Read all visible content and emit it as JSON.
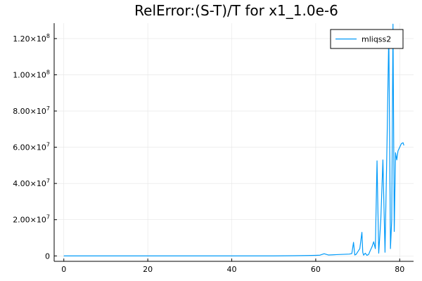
{
  "chart_data": {
    "type": "line",
    "title": "RelError:(S-T)/T for x1_1.0e-6",
    "xlabel": "",
    "ylabel": "",
    "xlim": [
      -2.3,
      83.3
    ],
    "ylim": [
      -3000000,
      128500000
    ],
    "grid": true,
    "legend_position": "top-right",
    "x_ticks": [
      {
        "value": 0,
        "label": "0"
      },
      {
        "value": 20,
        "label": "20"
      },
      {
        "value": 40,
        "label": "40"
      },
      {
        "value": 60,
        "label": "60"
      },
      {
        "value": 80,
        "label": "80"
      }
    ],
    "y_ticks": [
      {
        "value": 0,
        "mantissa": "0",
        "exponent": ""
      },
      {
        "value": 20000000,
        "mantissa": "2.00×10",
        "exponent": "7"
      },
      {
        "value": 40000000,
        "mantissa": "4.00×10",
        "exponent": "7"
      },
      {
        "value": 60000000,
        "mantissa": "6.00×10",
        "exponent": "7"
      },
      {
        "value": 80000000,
        "mantissa": "8.00×10",
        "exponent": "7"
      },
      {
        "value": 100000000,
        "mantissa": "1.00×10",
        "exponent": "8"
      },
      {
        "value": 120000000,
        "mantissa": "1.20×10",
        "exponent": "8"
      }
    ],
    "series": [
      {
        "name": "mliqss2",
        "color": "#009af9",
        "x": [
          0,
          10,
          20,
          30,
          40,
          50,
          55,
          58,
          60,
          61,
          62,
          63,
          64,
          65,
          66,
          67,
          68,
          68.6,
          69.0,
          69.3,
          69.6,
          70.0,
          70.5,
          71.0,
          71.2,
          71.4,
          71.8,
          72.2,
          72.6,
          73.0,
          73.4,
          73.8,
          74.2,
          74.6,
          75.0,
          75.5,
          76.0,
          76.5,
          77.0,
          77.4,
          77.8,
          78.1,
          78.4,
          78.7,
          79.0,
          79.3,
          79.6,
          80.0,
          80.4,
          80.8,
          81.0
        ],
        "values": [
          0,
          0,
          0,
          0,
          0,
          0,
          100000,
          200000,
          300000,
          400000,
          1200000,
          500000,
          600000,
          700000,
          800000,
          900000,
          1000000,
          1300000,
          7500000,
          500000,
          800000,
          2200000,
          4000000,
          13000000,
          2000000,
          400000,
          1500000,
          300000,
          800000,
          3000000,
          5000000,
          7800000,
          4000000,
          52500000,
          1500000,
          20000000,
          53000000,
          2000000,
          65000000,
          123000000,
          4000000,
          20000000,
          128000000,
          13500000,
          57000000,
          53000000,
          58000000,
          60000000,
          62000000,
          62500000,
          61000000
        ]
      }
    ]
  }
}
